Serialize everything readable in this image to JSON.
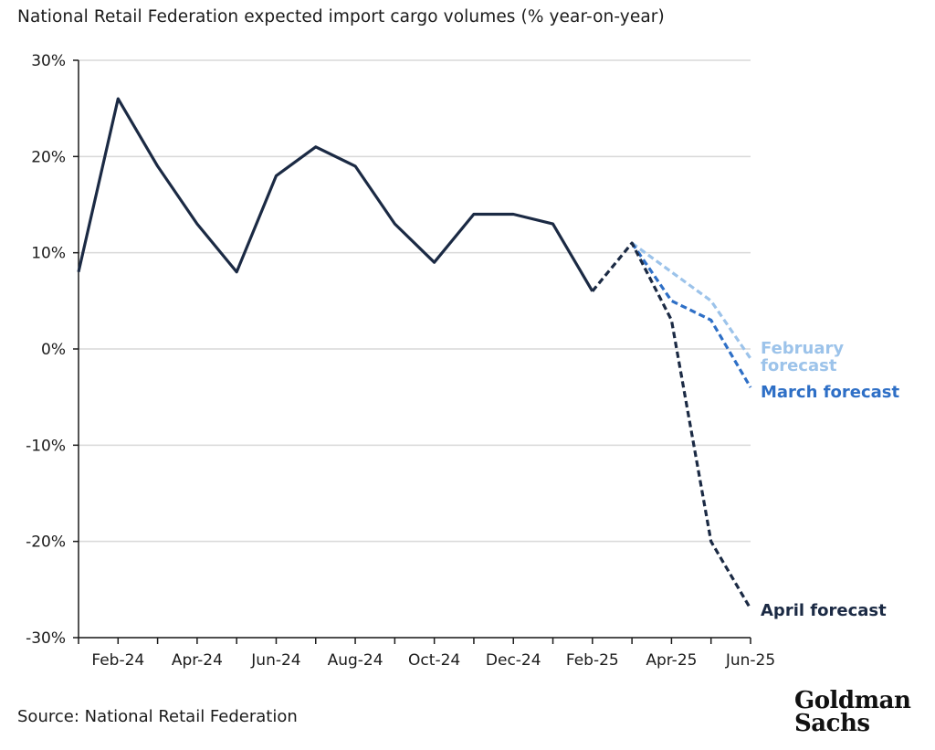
{
  "title": "National Retail Federation expected import cargo volumes (% year-on-year)",
  "source": "Source: National Retail Federation",
  "logo": {
    "line1": "Goldman",
    "line2": "Sachs"
  },
  "colors": {
    "actual": "#1b2a44",
    "april": "#1b2a44",
    "march": "#2e6fc6",
    "february": "#9cc3ea",
    "grid": "#d9d9d9",
    "axis": "#1b1b1b"
  },
  "chart_data": {
    "type": "line",
    "ylim": [
      -30,
      30
    ],
    "y_ticks": [
      30,
      20,
      10,
      0,
      -10,
      -20,
      -30
    ],
    "y_tick_labels": [
      "30%",
      "20%",
      "10%",
      "0%",
      "-10%",
      "-20%",
      "-30%"
    ],
    "x_ticks": [
      "Feb-24",
      "Apr-24",
      "Jun-24",
      "Aug-24",
      "Oct-24",
      "Dec-24",
      "Feb-25",
      "Apr-25",
      "Jun-25"
    ],
    "grid": "horizontal",
    "series": [
      {
        "key": "actual",
        "style": "solid",
        "x": [
          "Jan-24",
          "Feb-24",
          "Mar-24",
          "Apr-24",
          "May-24",
          "Jun-24",
          "Jul-24",
          "Aug-24",
          "Sep-24",
          "Oct-24",
          "Nov-24",
          "Dec-24",
          "Jan-25",
          "Feb-25"
        ],
        "values": [
          8,
          26,
          19,
          13,
          8,
          18,
          21,
          19,
          13,
          9,
          14,
          14,
          13,
          6
        ]
      },
      {
        "key": "february",
        "name": "February forecast",
        "label_lines": [
          "February",
          "forecast"
        ],
        "style": "dashed",
        "x": [
          "Mar-25",
          "Apr-25",
          "May-25",
          "Jun-25"
        ],
        "values": [
          11,
          8,
          5,
          -1
        ]
      },
      {
        "key": "march",
        "name": "March forecast",
        "label_lines": [
          "March forecast"
        ],
        "style": "dashed",
        "x": [
          "Mar-25",
          "Apr-25",
          "May-25",
          "Jun-25"
        ],
        "values": [
          11,
          5,
          3,
          -4
        ]
      },
      {
        "key": "april",
        "name": "April forecast",
        "label_lines": [
          "April forecast"
        ],
        "style": "dashed",
        "x": [
          "Feb-25",
          "Mar-25",
          "Apr-25",
          "May-25",
          "Jun-25"
        ],
        "values": [
          6,
          11,
          3,
          -20,
          -27
        ]
      }
    ]
  }
}
